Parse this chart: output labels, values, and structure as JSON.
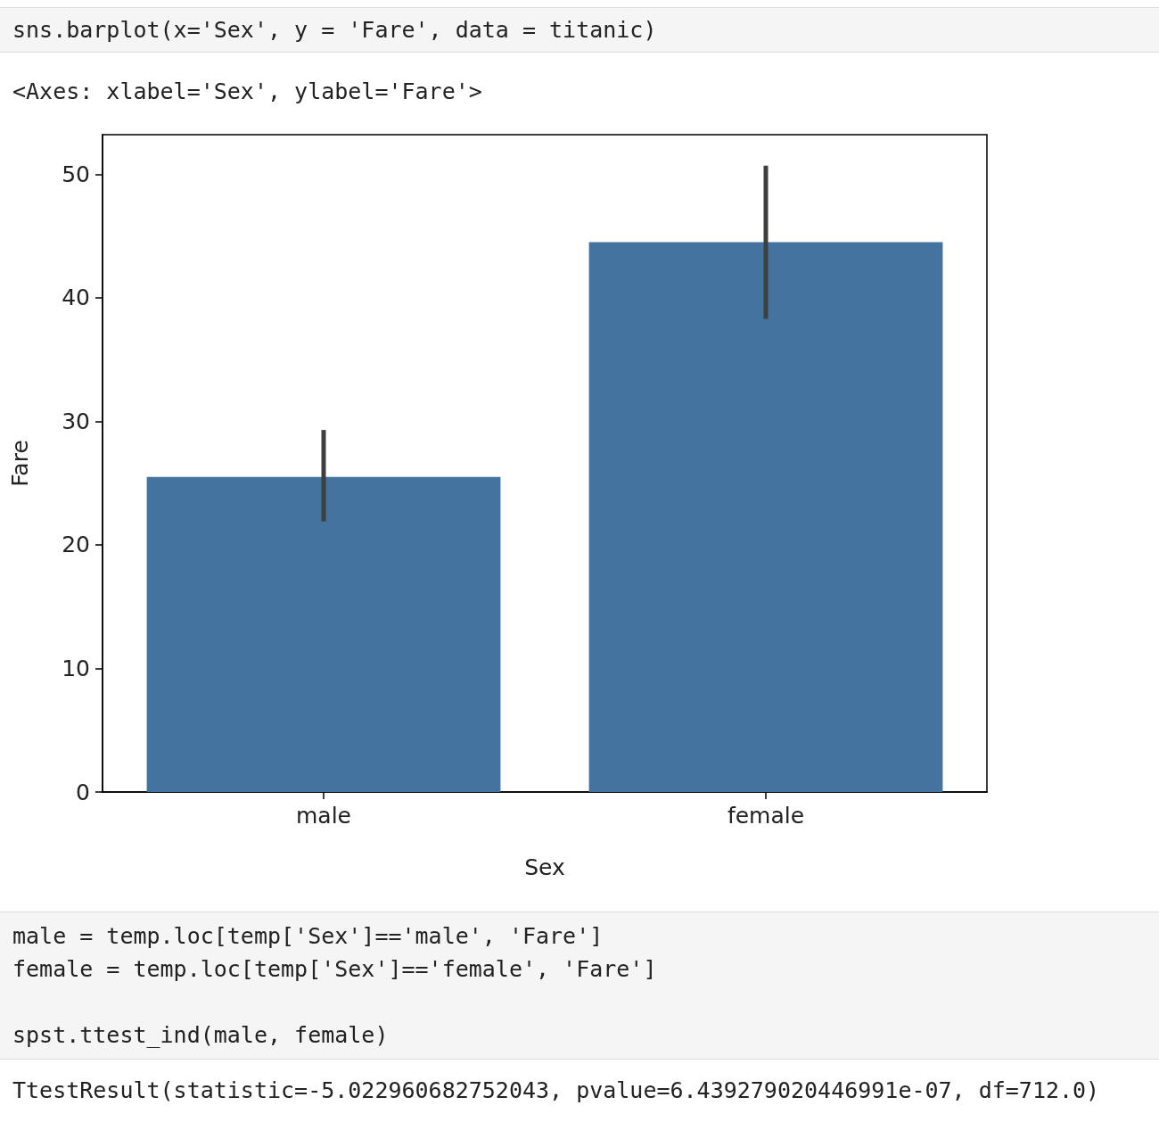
{
  "chart_data": {
    "type": "bar",
    "xlabel": "Sex",
    "ylabel": "Fare",
    "categories": [
      "male",
      "female"
    ],
    "values": [
      25.5,
      44.5
    ],
    "errors": [
      [
        21.9,
        29.3
      ],
      [
        38.3,
        50.7
      ]
    ],
    "color": "#4573a0",
    "ylim": [
      0,
      53.2
    ],
    "yticks": [
      0,
      10,
      20,
      30,
      40,
      50
    ],
    "annotations": [
      "sns.barplot(x='Sex', y = 'Fare', data = titanic)",
      "<Axes: xlabel='Sex', ylabel='Fare'>",
      "male = temp.loc[temp['Sex']=='male', 'Fare']",
      "female = temp.loc[temp['Sex']=='female', 'Fare']",
      "spst.ttest_ind(male, female)",
      "TtestResult(statistic=-5.022960682752043, pvalue=6.439279020446991e-07, df=712.0)"
    ]
  }
}
